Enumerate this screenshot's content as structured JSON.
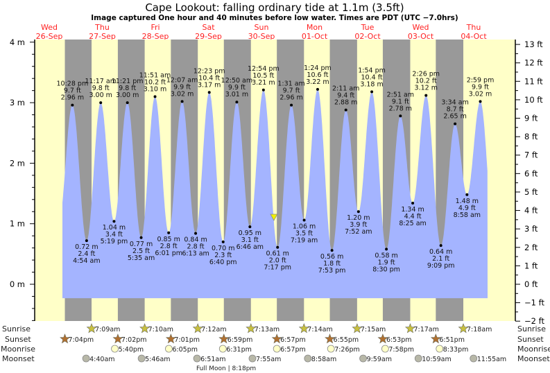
{
  "title": "Cape Lookout: falling  ordinary tide at 1.1m (3.5ft)",
  "subtitle": "Image captured One hour and 40 minutes before low water. Times are PDT (UTC −7.0hrs)",
  "colors": {
    "day": "#ffffc8",
    "night": "#999999",
    "water": "#a4b4ff",
    "day_label": "#ff2020",
    "sunrise": "#c8c040",
    "sunset": "#b07030",
    "moonrise": "#ffffc8",
    "moonset": "#b8b8a8",
    "marker": "#f0f000"
  },
  "days": [
    {
      "name": "Wed",
      "date": "26-Sep"
    },
    {
      "name": "Thu",
      "date": "27-Sep"
    },
    {
      "name": "Fri",
      "date": "28-Sep"
    },
    {
      "name": "Sat",
      "date": "29-Sep"
    },
    {
      "name": "Sun",
      "date": "30-Sep"
    },
    {
      "name": "Mon",
      "date": "01-Oct"
    },
    {
      "name": "Tue",
      "date": "02-Oct"
    },
    {
      "name": "Wed",
      "date": "03-Oct"
    },
    {
      "name": "Thu",
      "date": "04-Oct"
    }
  ],
  "chart_data": {
    "type": "area",
    "title": "Cape Lookout: falling  ordinary tide at 1.1m (3.5ft)",
    "y_left": {
      "unit": "m",
      "range": [
        -0.6,
        4.05
      ],
      "ticks": [
        "4 m",
        "3 m",
        "2 m",
        "1 m",
        "0 m"
      ]
    },
    "y_right": {
      "unit": "ft",
      "ticks": [
        "13 ft",
        "12 ft",
        "11 ft",
        "10 ft",
        "9 ft",
        "8 ft",
        "7 ft",
        "6 ft",
        "5 ft",
        "4 ft",
        "3 ft",
        "2 ft",
        "1 ft",
        "0 ft",
        "−1 ft",
        "−2 ft"
      ]
    },
    "current": {
      "height_m": 1.1,
      "height_ft": 3.5,
      "state": "falling",
      "minutes_before_low": 100
    },
    "tides": [
      {
        "date": "26-Sep",
        "time": "10:28 pm",
        "type": "high",
        "ft": "9.7 ft",
        "m": "2.96 m",
        "value": 2.96
      },
      {
        "date": "27-Sep",
        "time": "4:54 am",
        "type": "low",
        "ft": "2.4 ft",
        "m": "0.72 m",
        "value": 0.72
      },
      {
        "date": "27-Sep",
        "time": "11:17 am",
        "type": "high",
        "ft": "9.8 ft",
        "m": "3.00 m",
        "value": 3.0
      },
      {
        "date": "27-Sep",
        "time": "5:19 pm",
        "type": "low",
        "ft": "3.4 ft",
        "m": "1.04 m",
        "value": 1.04
      },
      {
        "date": "27-Sep",
        "time": "11:21 pm",
        "type": "high",
        "ft": "9.8 ft",
        "m": "3.00 m",
        "value": 3.0
      },
      {
        "date": "28-Sep",
        "time": "5:35 am",
        "type": "low",
        "ft": "2.5 ft",
        "m": "0.77 m",
        "value": 0.77
      },
      {
        "date": "28-Sep",
        "time": "11:51 am",
        "type": "high",
        "ft": "10.2 ft",
        "m": "3.10 m",
        "value": 3.1
      },
      {
        "date": "28-Sep",
        "time": "6:01 pm",
        "type": "low",
        "ft": "2.8 ft",
        "m": "0.85 m",
        "value": 0.85
      },
      {
        "date": "29-Sep",
        "time": "12:07 am",
        "type": "high",
        "ft": "9.9 ft",
        "m": "3.02 m",
        "value": 3.02
      },
      {
        "date": "29-Sep",
        "time": "6:13 am",
        "type": "low",
        "ft": "2.8 ft",
        "m": "0.84 m",
        "value": 0.84
      },
      {
        "date": "29-Sep",
        "time": "12:23 pm",
        "type": "high",
        "ft": "10.4 ft",
        "m": "3.17 m",
        "value": 3.17
      },
      {
        "date": "29-Sep",
        "time": "6:40 pm",
        "type": "low",
        "ft": "2.3 ft",
        "m": "0.70 m",
        "value": 0.7
      },
      {
        "date": "30-Sep",
        "time": "12:50 am",
        "type": "high",
        "ft": "9.9 ft",
        "m": "3.01 m",
        "value": 3.01
      },
      {
        "date": "30-Sep",
        "time": "6:46 am",
        "type": "low",
        "ft": "3.1 ft",
        "m": "0.95 m",
        "value": 0.95
      },
      {
        "date": "30-Sep",
        "time": "12:54 pm",
        "type": "high",
        "ft": "10.5 ft",
        "m": "3.21 m",
        "value": 3.21
      },
      {
        "date": "30-Sep",
        "time": "7:17 pm",
        "type": "low",
        "ft": "2.0 ft",
        "m": "0.61 m",
        "value": 0.61
      },
      {
        "date": "01-Oct",
        "time": "1:31 am",
        "type": "high",
        "ft": "9.7 ft",
        "m": "2.96 m",
        "value": 2.96
      },
      {
        "date": "01-Oct",
        "time": "7:19 am",
        "type": "low",
        "ft": "3.5 ft",
        "m": "1.06 m",
        "value": 1.06
      },
      {
        "date": "01-Oct",
        "time": "1:24 pm",
        "type": "high",
        "ft": "10.6 ft",
        "m": "3.22 m",
        "value": 3.22
      },
      {
        "date": "01-Oct",
        "time": "7:53 pm",
        "type": "low",
        "ft": "1.8 ft",
        "m": "0.56 m",
        "value": 0.56
      },
      {
        "date": "02-Oct",
        "time": "2:11 am",
        "type": "high",
        "ft": "9.4 ft",
        "m": "2.88 m",
        "value": 2.88
      },
      {
        "date": "02-Oct",
        "time": "7:52 am",
        "type": "low",
        "ft": "3.9 ft",
        "m": "1.20 m",
        "value": 1.2
      },
      {
        "date": "02-Oct",
        "time": "1:54 pm",
        "type": "high",
        "ft": "10.4 ft",
        "m": "3.18 m",
        "value": 3.18
      },
      {
        "date": "02-Oct",
        "time": "8:30 pm",
        "type": "low",
        "ft": "1.9 ft",
        "m": "0.58 m",
        "value": 0.58
      },
      {
        "date": "03-Oct",
        "time": "2:51 am",
        "type": "high",
        "ft": "9.1 ft",
        "m": "2.78 m",
        "value": 2.78
      },
      {
        "date": "03-Oct",
        "time": "8:25 am",
        "type": "low",
        "ft": "4.4 ft",
        "m": "1.34 m",
        "value": 1.34
      },
      {
        "date": "03-Oct",
        "time": "2:26 pm",
        "type": "high",
        "ft": "10.2 ft",
        "m": "3.12 m",
        "value": 3.12
      },
      {
        "date": "03-Oct",
        "time": "9:09 pm",
        "type": "low",
        "ft": "2.1 ft",
        "m": "0.64 m",
        "value": 0.64
      },
      {
        "date": "04-Oct",
        "time": "3:34 am",
        "type": "high",
        "ft": "8.7 ft",
        "m": "2.65 m",
        "value": 2.65
      },
      {
        "date": "04-Oct",
        "time": "8:58 am",
        "type": "low",
        "ft": "4.9 ft",
        "m": "1.48 m",
        "value": 1.48
      },
      {
        "date": "04-Oct",
        "time": "2:59 pm",
        "type": "high",
        "ft": "9.9 ft",
        "m": "3.02 m",
        "value": 3.02
      }
    ]
  },
  "astro": {
    "labels": {
      "sunrise": "Sunrise",
      "sunset": "Sunset",
      "moonrise": "Moonrise",
      "moonset": "Moonset"
    },
    "sunrise": [
      {
        "date": "27-Sep",
        "time": "7:09am"
      },
      {
        "date": "28-Sep",
        "time": "7:10am"
      },
      {
        "date": "29-Sep",
        "time": "7:12am"
      },
      {
        "date": "30-Sep",
        "time": "7:13am"
      },
      {
        "date": "01-Oct",
        "time": "7:14am"
      },
      {
        "date": "02-Oct",
        "time": "7:15am"
      },
      {
        "date": "03-Oct",
        "time": "7:17am"
      },
      {
        "date": "04-Oct",
        "time": "7:18am"
      }
    ],
    "sunset": [
      {
        "date": "26-Sep",
        "time": "7:04pm"
      },
      {
        "date": "27-Sep",
        "time": "7:02pm"
      },
      {
        "date": "28-Sep",
        "time": "7:01pm"
      },
      {
        "date": "29-Sep",
        "time": "6:59pm"
      },
      {
        "date": "30-Sep",
        "time": "6:57pm"
      },
      {
        "date": "01-Oct",
        "time": "6:55pm"
      },
      {
        "date": "02-Oct",
        "time": "6:53pm"
      },
      {
        "date": "03-Oct",
        "time": "6:51pm"
      }
    ],
    "moonrise": [
      {
        "date": "27-Sep",
        "time": "5:40pm"
      },
      {
        "date": "28-Sep",
        "time": "6:05pm"
      },
      {
        "date": "29-Sep",
        "time": "6:31pm"
      },
      {
        "date": "30-Sep",
        "time": "6:57pm"
      },
      {
        "date": "01-Oct",
        "time": "7:26pm"
      },
      {
        "date": "02-Oct",
        "time": "7:58pm"
      },
      {
        "date": "03-Oct",
        "time": "8:33pm"
      }
    ],
    "moonset": [
      {
        "date": "27-Sep",
        "time": "4:40am"
      },
      {
        "date": "28-Sep",
        "time": "5:46am"
      },
      {
        "date": "29-Sep",
        "time": "6:51am"
      },
      {
        "date": "30-Sep",
        "time": "7:55am"
      },
      {
        "date": "01-Oct",
        "time": "8:58am"
      },
      {
        "date": "02-Oct",
        "time": "9:59am"
      },
      {
        "date": "03-Oct",
        "time": "10:59am"
      },
      {
        "date": "04-Oct",
        "time": "11:55am"
      }
    ],
    "moon_phase": {
      "label": "Full Moon",
      "time": "8:18pm"
    }
  }
}
